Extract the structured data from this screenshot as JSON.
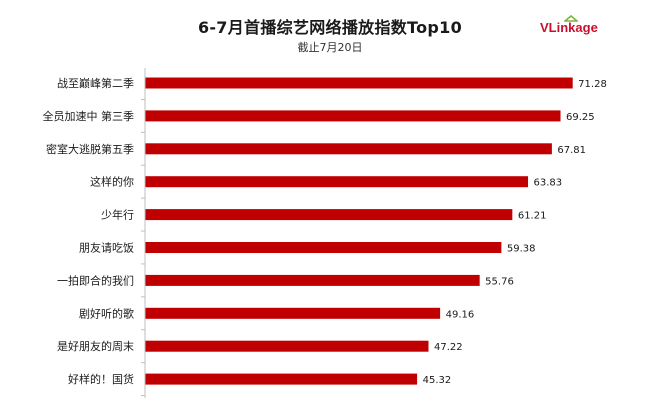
{
  "header": {
    "title": "6-7月首播综艺网络播放指数Top10",
    "subtitle": "截止7月20日"
  },
  "logo": {
    "text_prefix": "VLink",
    "text_suffix": "age",
    "color": "#c8102e"
  },
  "colors": {
    "bar": "#c00000",
    "axis": "#bfbfbf"
  },
  "chart_data": {
    "type": "bar",
    "orientation": "horizontal",
    "title": "6-7月首播综艺网络播放指数Top10",
    "subtitle": "截止7月20日",
    "xlim": [
      0,
      72
    ],
    "categories": [
      "战至巅峰第二季",
      "全员加速中 第三季",
      "密室大逃脱第五季",
      "这样的你",
      "少年行",
      "朋友请吃饭",
      "一拍即合的我们",
      "剧好听的歌",
      "是好朋友的周末",
      "好样的！国货"
    ],
    "values": [
      71.28,
      69.25,
      67.81,
      63.83,
      61.21,
      59.38,
      55.76,
      49.16,
      47.22,
      45.32
    ],
    "value_labels": [
      "71.28",
      "69.25",
      "67.81",
      "63.83",
      "61.21",
      "59.38",
      "55.76",
      "49.16",
      "47.22",
      "45.32"
    ],
    "legend": "none",
    "grid": false
  }
}
